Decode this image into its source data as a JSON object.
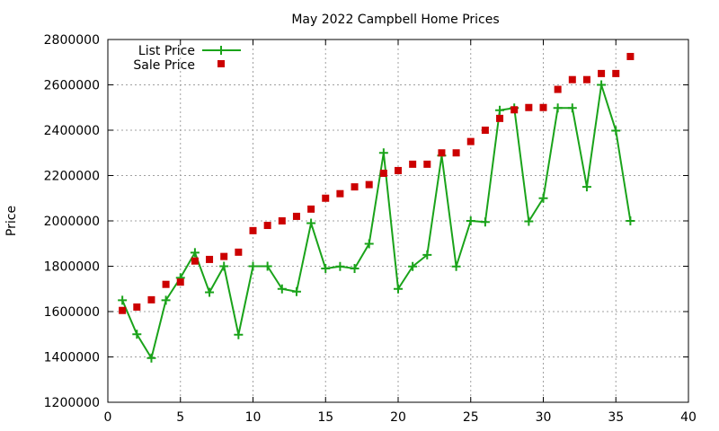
{
  "chart_data": {
    "type": "line",
    "title": "May 2022 Campbell Home Prices",
    "xlabel": "",
    "ylabel": "Price",
    "xlim": [
      0,
      40
    ],
    "ylim": [
      1200000,
      2800000
    ],
    "xticks": [
      "0",
      "5",
      "10",
      "15",
      "20",
      "25",
      "30",
      "35",
      "40"
    ],
    "yticks": [
      "1200000",
      "1400000",
      "1600000",
      "1800000",
      "2000000",
      "2200000",
      "2400000",
      "2600000",
      "2800000"
    ],
    "grid": true,
    "legend_position": "top-left",
    "series": [
      {
        "name": "List Price",
        "style": "line-points",
        "color": "#1aa31a",
        "x": [
          1,
          2,
          3,
          4,
          5,
          6,
          7,
          8,
          9,
          10,
          11,
          12,
          13,
          14,
          15,
          16,
          17,
          18,
          19,
          20,
          21,
          22,
          23,
          24,
          25,
          26,
          27,
          28,
          29,
          30,
          31,
          32,
          33,
          34,
          35,
          36
        ],
        "y": [
          1650000,
          1500000,
          1395000,
          1650000,
          1749000,
          1860000,
          1685000,
          1800000,
          1498000,
          1800000,
          1800000,
          1700000,
          1688000,
          1990000,
          1790000,
          1799000,
          1790000,
          1899000,
          2300000,
          1700000,
          1799000,
          1850000,
          2288000,
          1799000,
          2000000,
          1995000,
          2488000,
          2498000,
          1998000,
          2100000,
          2498000,
          2498000,
          2150000,
          2600000,
          2398000,
          2000000
        ]
      },
      {
        "name": "Sale Price",
        "style": "points",
        "color": "#cc0000",
        "x": [
          1,
          2,
          3,
          4,
          5,
          6,
          7,
          8,
          9,
          10,
          11,
          12,
          13,
          14,
          15,
          16,
          17,
          18,
          19,
          20,
          21,
          22,
          23,
          24,
          25,
          26,
          27,
          28,
          29,
          30,
          31,
          32,
          33,
          34,
          35,
          36
        ],
        "y": [
          1605000,
          1620000,
          1652000,
          1720000,
          1730000,
          1823000,
          1830000,
          1843000,
          1862000,
          1957000,
          1980000,
          2000000,
          2020000,
          2052000,
          2100000,
          2120000,
          2150000,
          2160000,
          2210000,
          2222000,
          2250000,
          2250000,
          2300000,
          2300000,
          2350000,
          2400000,
          2452000,
          2490000,
          2500000,
          2500000,
          2580000,
          2623000,
          2623000,
          2650000,
          2650000,
          2725000
        ]
      }
    ]
  }
}
